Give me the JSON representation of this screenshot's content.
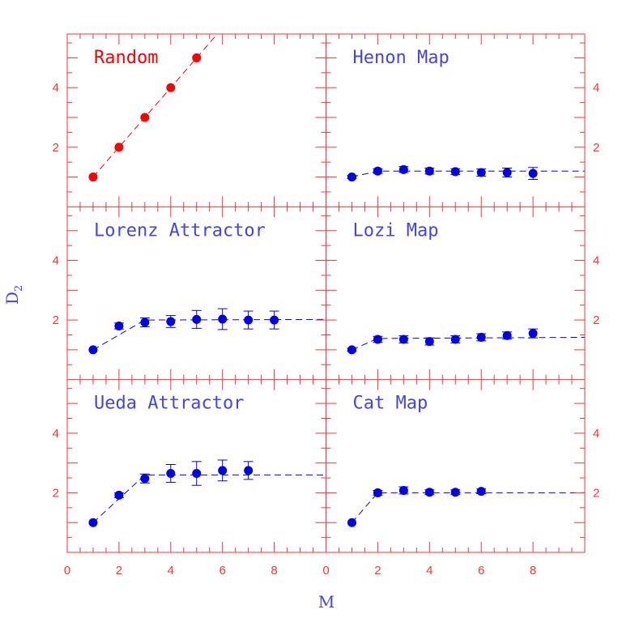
{
  "colors": {
    "frame": "#ff3333",
    "random": "#ff0000",
    "chaotic": "#0000ee",
    "label": "#4444ee"
  },
  "chart_data": {
    "type": "scatter",
    "grid": "2x3 panels with shared x axis (bottom) and alternating y axes (left column left side, right column right side)",
    "xlabel": "M",
    "ylabel": "D",
    "ylabel_sub": "2",
    "xlim": [
      0,
      10
    ],
    "ylim": [
      0,
      5.8
    ],
    "x_ticks": [
      0,
      2,
      4,
      6,
      8
    ],
    "y_ticks": [
      2,
      4
    ],
    "panels": [
      {
        "id": "random",
        "title": "Random",
        "col": 0,
        "row": 0,
        "color": "random",
        "x": [
          1,
          2,
          3,
          4,
          5
        ],
        "y": [
          1.0,
          2.0,
          3.0,
          4.0,
          5.0
        ],
        "yerr": [
          0,
          0,
          0,
          0,
          0
        ],
        "fit": {
          "x": [
            1,
            6
          ],
          "y": [
            1.0,
            6.0
          ]
        }
      },
      {
        "id": "henon",
        "title": "Henon Map",
        "col": 1,
        "row": 0,
        "color": "chaotic",
        "x": [
          1,
          2,
          3,
          4,
          5,
          6,
          7,
          8
        ],
        "y": [
          1.0,
          1.2,
          1.25,
          1.2,
          1.18,
          1.15,
          1.15,
          1.12
        ],
        "yerr": [
          0.05,
          0.08,
          0.1,
          0.1,
          0.1,
          0.12,
          0.15,
          0.2
        ],
        "fit": {
          "x": [
            1,
            2,
            10
          ],
          "y": [
            1.0,
            1.2,
            1.2
          ]
        }
      },
      {
        "id": "lorenz",
        "title": "Lorenz Attractor",
        "col": 0,
        "row": 1,
        "color": "chaotic",
        "x": [
          1,
          2,
          3,
          4,
          5,
          6,
          7,
          8
        ],
        "y": [
          1.0,
          1.8,
          1.92,
          1.95,
          2.02,
          2.03,
          2.0,
          2.0
        ],
        "yerr": [
          0,
          0.1,
          0.15,
          0.2,
          0.3,
          0.35,
          0.3,
          0.3
        ],
        "fit": {
          "x": [
            1,
            3,
            10
          ],
          "y": [
            1.0,
            2.0,
            2.02
          ]
        }
      },
      {
        "id": "lozi",
        "title": "Lozi Map",
        "col": 1,
        "row": 1,
        "color": "chaotic",
        "x": [
          1,
          2,
          3,
          4,
          5,
          6,
          7,
          8
        ],
        "y": [
          1.0,
          1.35,
          1.35,
          1.28,
          1.35,
          1.42,
          1.48,
          1.55
        ],
        "yerr": [
          0.05,
          0.1,
          0.12,
          0.12,
          0.12,
          0.12,
          0.12,
          0.15
        ],
        "fit": {
          "x": [
            1,
            2,
            10
          ],
          "y": [
            1.0,
            1.38,
            1.42
          ]
        }
      },
      {
        "id": "ueda",
        "title": "Ueda Attractor",
        "col": 0,
        "row": 2,
        "color": "chaotic",
        "x": [
          1,
          2,
          3,
          4,
          5,
          6,
          7
        ],
        "y": [
          1.0,
          1.92,
          2.48,
          2.65,
          2.65,
          2.75,
          2.75
        ],
        "yerr": [
          0,
          0.08,
          0.15,
          0.3,
          0.4,
          0.35,
          0.3
        ],
        "fit": {
          "x": [
            1,
            3,
            10
          ],
          "y": [
            1.0,
            2.6,
            2.6
          ]
        }
      },
      {
        "id": "cat",
        "title": "Cat Map",
        "col": 1,
        "row": 2,
        "color": "chaotic",
        "x": [
          1,
          2,
          3,
          4,
          5,
          6
        ],
        "y": [
          1.0,
          2.0,
          2.08,
          2.02,
          2.02,
          2.05
        ],
        "yerr": [
          0,
          0.08,
          0.12,
          0.08,
          0.08,
          0.08
        ],
        "fit": {
          "x": [
            1,
            2,
            10
          ],
          "y": [
            1.0,
            2.0,
            2.0
          ]
        }
      }
    ]
  }
}
